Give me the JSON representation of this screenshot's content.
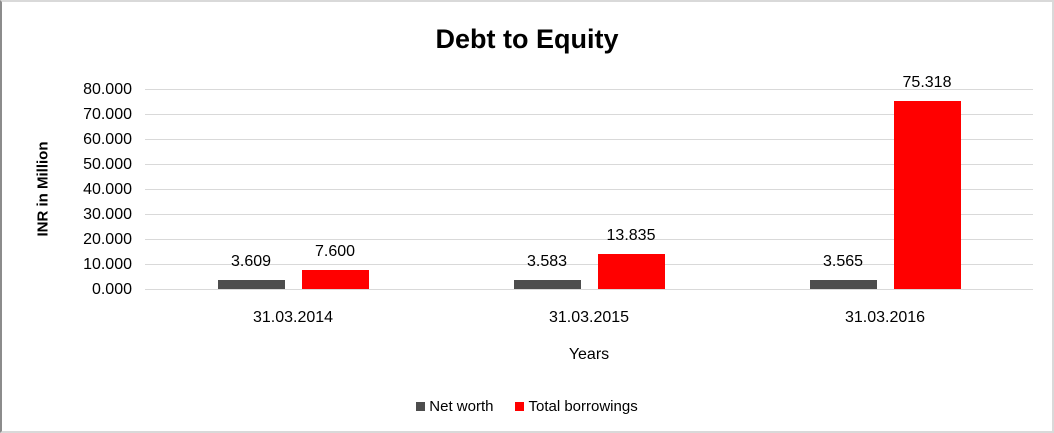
{
  "chart_data": {
    "type": "bar",
    "title": "Debt to Equity",
    "xlabel": "Years",
    "ylabel": "INR in Million",
    "categories": [
      "31.03.2014",
      "31.03.2015",
      "31.03.2016"
    ],
    "series": [
      {
        "name": "Net worth",
        "color": "#4d4d4d",
        "values": [
          3.609,
          3.583,
          3.565
        ]
      },
      {
        "name": "Total borrowings",
        "color": "#ff0000",
        "values": [
          7.6,
          13.835,
          75.318
        ]
      }
    ],
    "y_ticks": [
      "0.000",
      "10.000",
      "20.000",
      "30.000",
      "40.000",
      "50.000",
      "60.000",
      "70.000",
      "80.000"
    ],
    "ylim": [
      0,
      80
    ],
    "value_format": "0.000",
    "grid": true,
    "legend_position": "bottom",
    "colors": {
      "gridline": "#d9d9d9",
      "net_worth": "#4d4d4d",
      "total_borrowings": "#ff0000",
      "text": "#000000"
    }
  }
}
